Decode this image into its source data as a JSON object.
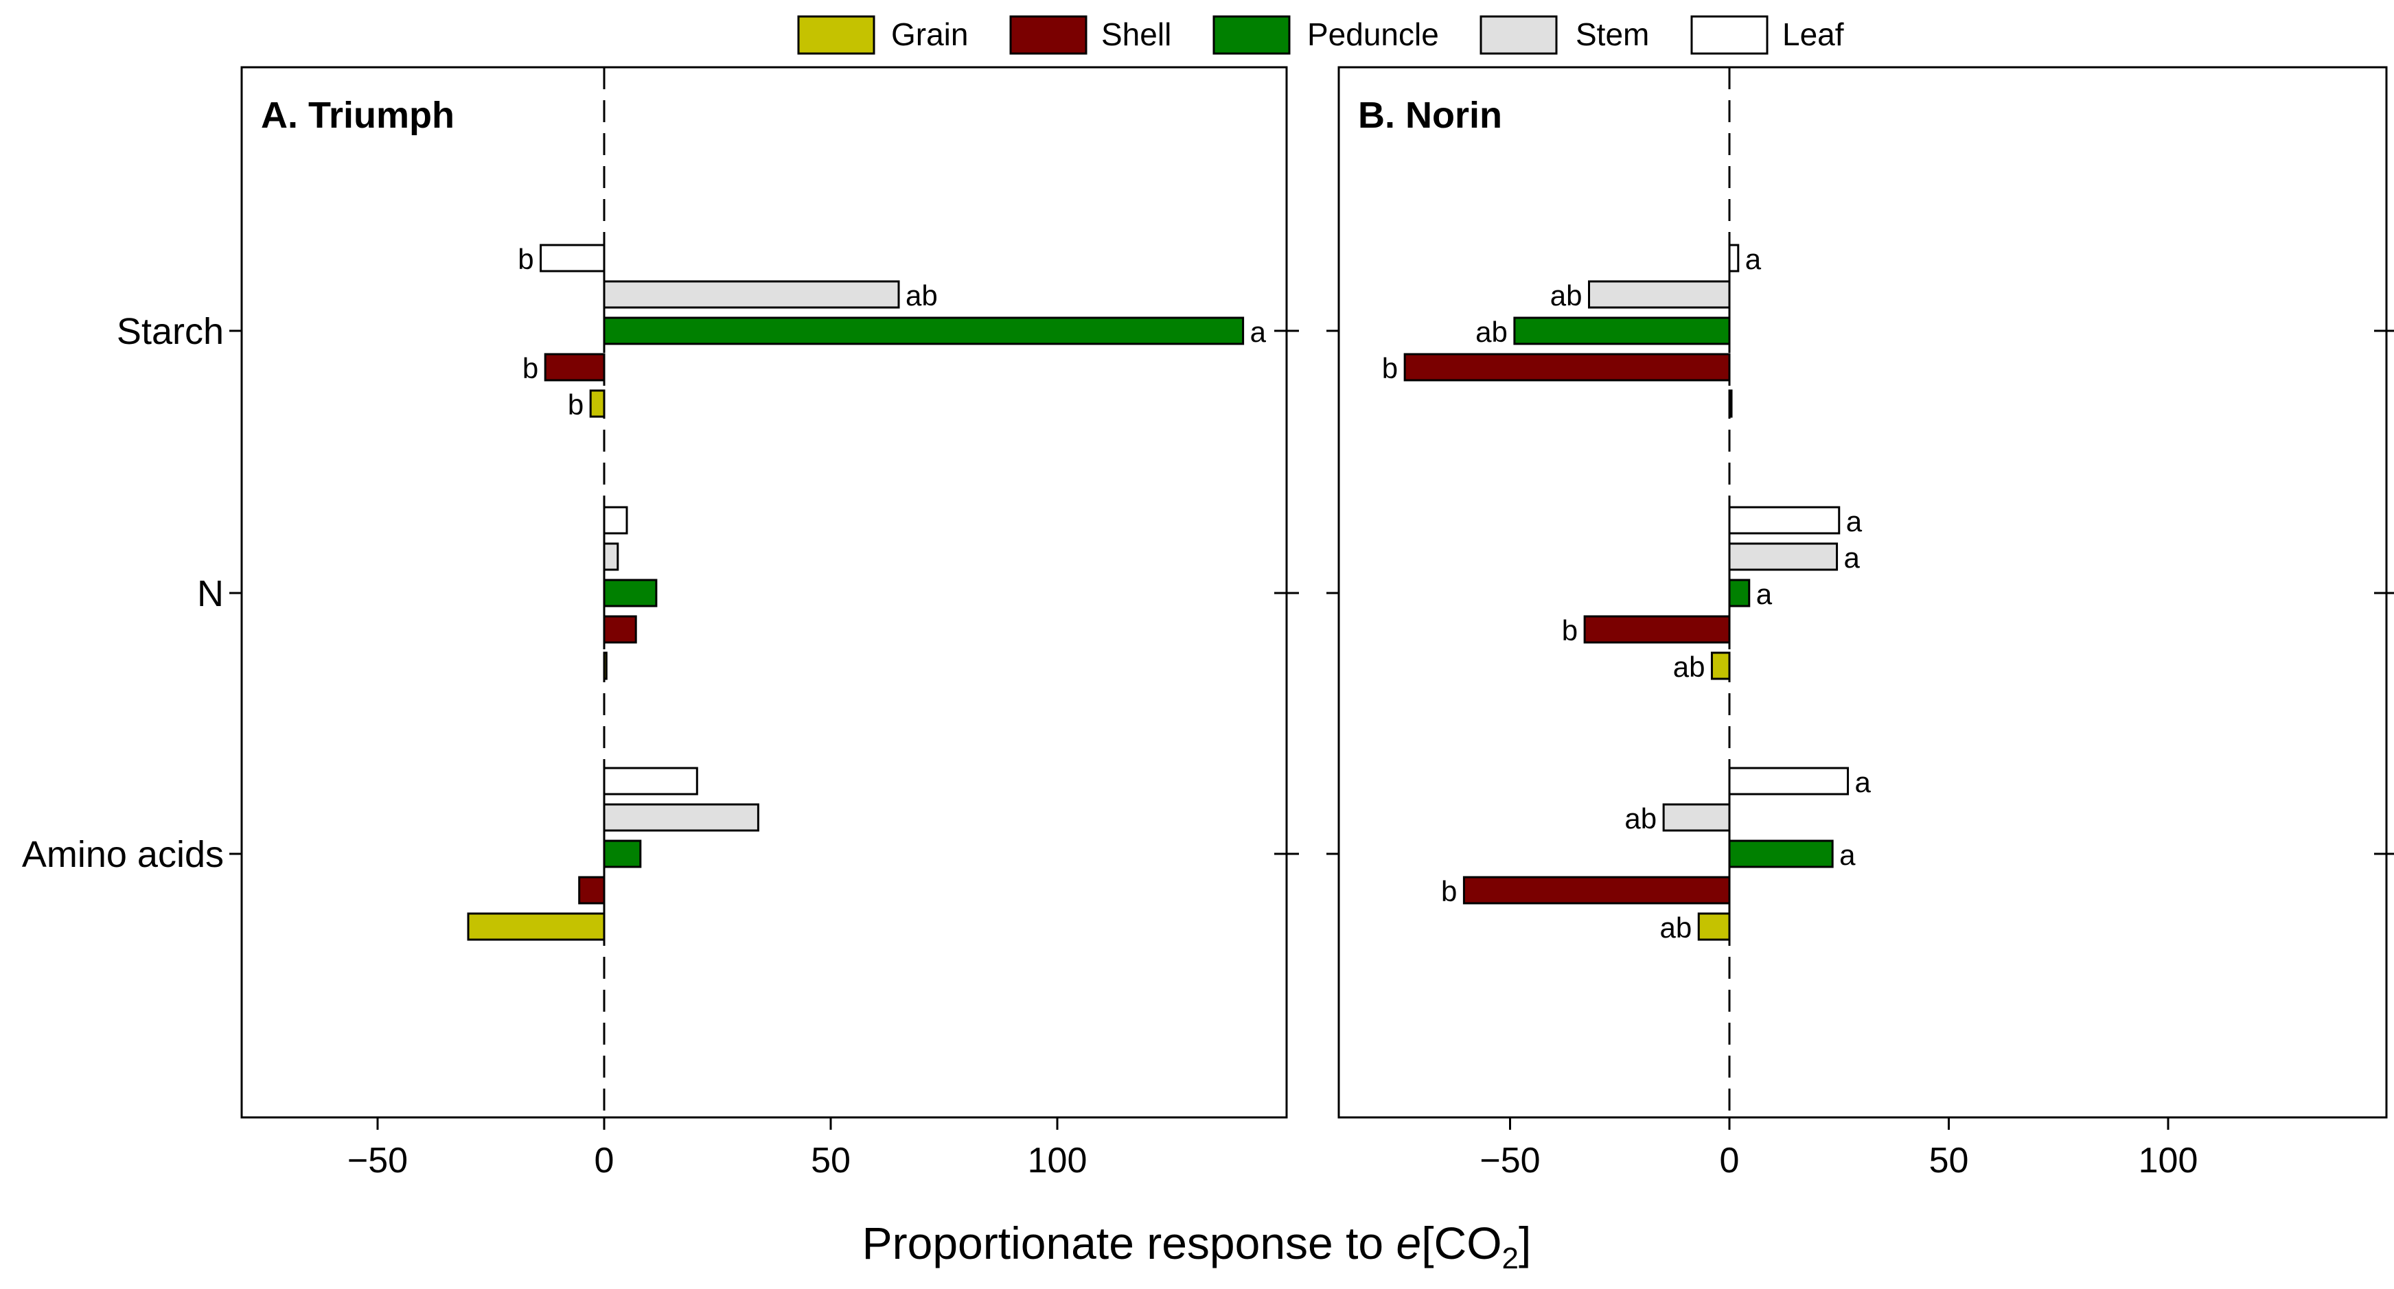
{
  "chart_data": {
    "type": "bar",
    "orientation": "horizontal",
    "xlabel_parts": {
      "prefix": "Proportionate response to ",
      "italic": "e",
      "bracket_open": "[CO",
      "subscript": "2",
      "bracket_close": "]"
    },
    "xlim": [
      -80,
      150
    ],
    "xticks": [
      -50,
      0,
      50,
      100
    ],
    "xtick_labels": [
      "−50",
      "0",
      "50",
      "100"
    ],
    "categories": [
      "Starch",
      "N",
      "Amino acids"
    ],
    "legend": {
      "placement": "top",
      "entries": [
        {
          "name": "Grain",
          "color": "#c5c200"
        },
        {
          "name": "Shell",
          "color": "#7a0000"
        },
        {
          "name": "Peduncle",
          "color": "#008000"
        },
        {
          "name": "Stem",
          "color": "#e0e0e0"
        },
        {
          "name": "Leaf",
          "color": "#ffffff"
        }
      ]
    },
    "series_order_top_to_bottom": [
      "Leaf",
      "Stem",
      "Peduncle",
      "Shell",
      "Grain"
    ],
    "panels": [
      {
        "title": "A. Triumph",
        "groups": [
          {
            "category": "Starch",
            "bars": [
              {
                "series": "Leaf",
                "value": -14,
                "label": "b"
              },
              {
                "series": "Stem",
                "value": 65,
                "label": "ab"
              },
              {
                "series": "Peduncle",
                "value": 141,
                "label": "a"
              },
              {
                "series": "Shell",
                "value": -13,
                "label": "b"
              },
              {
                "series": "Grain",
                "value": -3,
                "label": "b"
              }
            ]
          },
          {
            "category": "N",
            "bars": [
              {
                "series": "Leaf",
                "value": 5,
                "label": ""
              },
              {
                "series": "Stem",
                "value": 3,
                "label": ""
              },
              {
                "series": "Peduncle",
                "value": 11.5,
                "label": ""
              },
              {
                "series": "Shell",
                "value": 7,
                "label": ""
              },
              {
                "series": "Grain",
                "value": 0.5,
                "label": ""
              }
            ]
          },
          {
            "category": "Amino acids",
            "bars": [
              {
                "series": "Leaf",
                "value": 20.5,
                "label": ""
              },
              {
                "series": "Stem",
                "value": 34,
                "label": ""
              },
              {
                "series": "Peduncle",
                "value": 8,
                "label": ""
              },
              {
                "series": "Shell",
                "value": -5.5,
                "label": ""
              },
              {
                "series": "Grain",
                "value": -30,
                "label": ""
              }
            ]
          }
        ]
      },
      {
        "title": "B. Norin",
        "groups": [
          {
            "category": "Starch",
            "bars": [
              {
                "series": "Leaf",
                "value": 2,
                "label": "a"
              },
              {
                "series": "Stem",
                "value": -32,
                "label": "ab"
              },
              {
                "series": "Peduncle",
                "value": -49,
                "label": "ab"
              },
              {
                "series": "Shell",
                "value": -74,
                "label": "b"
              },
              {
                "series": "Grain",
                "value": 0.3,
                "label": ""
              }
            ]
          },
          {
            "category": "N",
            "bars": [
              {
                "series": "Leaf",
                "value": 25,
                "label": "a"
              },
              {
                "series": "Stem",
                "value": 24.5,
                "label": "a"
              },
              {
                "series": "Peduncle",
                "value": 4.5,
                "label": "a"
              },
              {
                "series": "Shell",
                "value": -33,
                "label": "b"
              },
              {
                "series": "Grain",
                "value": -4,
                "label": "ab"
              }
            ]
          },
          {
            "category": "Amino acids",
            "bars": [
              {
                "series": "Leaf",
                "value": 27,
                "label": "a"
              },
              {
                "series": "Stem",
                "value": -15,
                "label": "ab"
              },
              {
                "series": "Peduncle",
                "value": 23.5,
                "label": "a"
              },
              {
                "series": "Shell",
                "value": -60.5,
                "label": "b"
              },
              {
                "series": "Grain",
                "value": -7,
                "label": "ab"
              }
            ]
          }
        ]
      }
    ]
  }
}
